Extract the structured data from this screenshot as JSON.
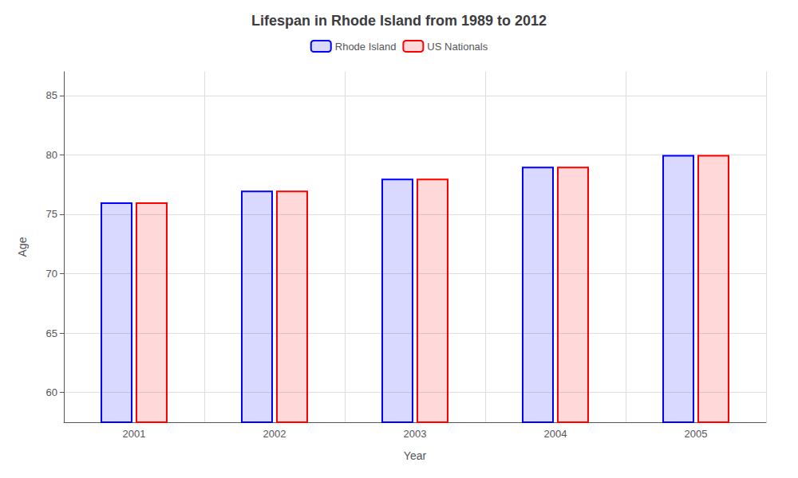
{
  "chart_data": {
    "type": "bar",
    "title": "Lifespan in Rhode Island from 1989 to 2012",
    "x_label": "Year",
    "y_label": "Age",
    "categories": [
      "2001",
      "2002",
      "2003",
      "2004",
      "2005"
    ],
    "series": [
      {
        "name": "Rhode Island",
        "color": "#0000ff",
        "values": [
          76.0,
          77.0,
          78.0,
          79.0,
          80.0
        ]
      },
      {
        "name": "US Nationals",
        "color": "#ff0000",
        "values": [
          76.0,
          77.0,
          78.0,
          79.0,
          80.0
        ]
      }
    ],
    "ylim": [
      57.5,
      87
    ],
    "yticks": [
      60,
      65,
      70,
      75,
      80,
      85
    ],
    "grid": true,
    "legend": "top"
  }
}
